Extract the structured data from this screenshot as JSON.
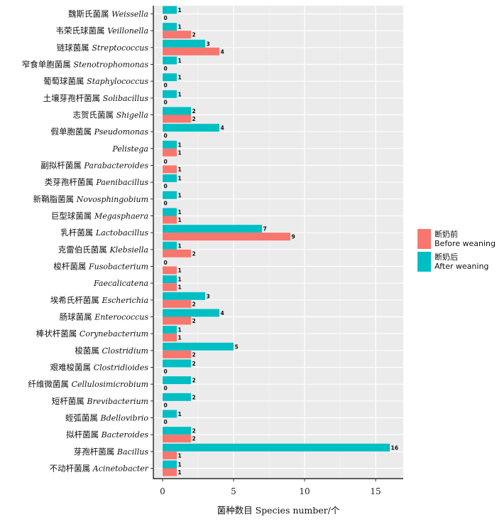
{
  "chart_data": {
    "type": "bar",
    "orientation": "horizontal",
    "grid": true,
    "legend_position": "right",
    "xlabel": "菌种数目 Species number/个",
    "xlim": [
      0,
      17
    ],
    "xticks": [
      0,
      5,
      10,
      15
    ],
    "categories": [
      {
        "cn": "魏斯氏菌属",
        "la": "Weissella"
      },
      {
        "cn": "韦荣氏球菌属",
        "la": "Veillonella"
      },
      {
        "cn": "链球菌属",
        "la": "Streptococcus"
      },
      {
        "cn": "窄食单胞菌属",
        "la": "Stenotrophomonas"
      },
      {
        "cn": "葡萄球菌属",
        "la": "Staphylococcus"
      },
      {
        "cn": "土壤芽孢杆菌属",
        "la": "Solibacillus"
      },
      {
        "cn": "志贺氏菌属",
        "la": "Shigella"
      },
      {
        "cn": "假单胞菌属",
        "la": "Pseudomonas"
      },
      {
        "cn": "",
        "la": "Pelistega"
      },
      {
        "cn": "副拟杆菌属",
        "la": "Parabacteroides"
      },
      {
        "cn": "类芽孢杆菌属",
        "la": "Paenibacillus"
      },
      {
        "cn": "新鞘脂菌属",
        "la": "Novosphingobium"
      },
      {
        "cn": "巨型球菌属",
        "la": "Megasphaera"
      },
      {
        "cn": "乳杆菌属",
        "la": "Lactobacillus"
      },
      {
        "cn": "克雷伯氏菌属",
        "la": "Klebsiella"
      },
      {
        "cn": "梭杆菌属",
        "la": "Fusobacterium"
      },
      {
        "cn": "",
        "la": "Faecalicatena"
      },
      {
        "cn": "埃希氏杆菌属",
        "la": "Escherichia"
      },
      {
        "cn": "肠球菌属",
        "la": "Enterococcus"
      },
      {
        "cn": "棒状杆菌属",
        "la": "Corynebacterium"
      },
      {
        "cn": "梭菌属",
        "la": "Clostridium"
      },
      {
        "cn": "艰难梭菌属",
        "la": "Clostridioides"
      },
      {
        "cn": "纤维微菌属",
        "la": "Cellulosimicrobium"
      },
      {
        "cn": "短杆菌属",
        "la": "Brevibacterium"
      },
      {
        "cn": "蛭弧菌属",
        "la": "Bdellovibrio"
      },
      {
        "cn": "拟杆菌属",
        "la": "Bacteroides"
      },
      {
        "cn": "芽孢杆菌属",
        "la": "Bacillus"
      },
      {
        "cn": "不动杆菌属",
        "la": "Acinetobacter"
      }
    ],
    "series": [
      {
        "name": "断奶后 After weaning",
        "legend_cn": "断奶后",
        "legend_en": "After weaning",
        "color": "#00BFC4",
        "values": [
          1,
          1,
          3,
          1,
          1,
          1,
          2,
          4,
          1,
          0,
          1,
          1,
          1,
          7,
          1,
          0,
          1,
          3,
          4,
          1,
          5,
          2,
          2,
          2,
          1,
          2,
          16,
          1
        ]
      },
      {
        "name": "断奶前 Before weaning",
        "legend_cn": "断奶前",
        "legend_en": "Before weaning",
        "color": "#F8766D",
        "values": [
          0,
          2,
          4,
          0,
          0,
          0,
          2,
          0,
          1,
          1,
          0,
          0,
          1,
          9,
          2,
          1,
          1,
          2,
          2,
          1,
          2,
          0,
          0,
          0,
          0,
          2,
          1,
          1
        ]
      }
    ],
    "legend_order": [
      1,
      0
    ]
  }
}
